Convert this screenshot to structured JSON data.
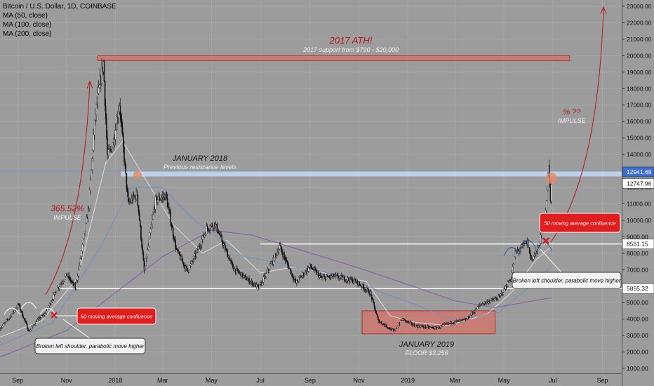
{
  "header": {
    "symbol": "Bitcoin / U.S. Dollar, 1D, COINBASE",
    "ma_labels": [
      "MA (50, close)",
      "MA (100, close)",
      "MA (200, close)"
    ]
  },
  "colors": {
    "background": "#9c9c9c",
    "grid": "#a7a7a7",
    "candle_up": "#ffffff",
    "candle_down": "#111111",
    "ma50": "#e2e2e2",
    "ma100": "#6a8fc2",
    "ma200": "#7d57b0",
    "red": "#b01818",
    "box_fill": "#d4736a",
    "resistance_band": "#c8d8f2",
    "white_line": "#ffffff"
  },
  "axis": {
    "y_ticks": [
      "1000.00",
      "2000.00",
      "3000.00",
      "4000.00",
      "5000.00",
      "6000.00",
      "7000.00",
      "8000.00",
      "9000.00",
      "10000.00",
      "11000.00",
      "12000.00",
      "13000.00",
      "14000.00",
      "15000.00",
      "16000.00",
      "17000.00",
      "18000.00",
      "19000.00",
      "20000.00",
      "21000.00",
      "22000.00",
      "23000.00"
    ],
    "x_ticks": [
      "Sep",
      "Nov",
      "2018",
      "Mar",
      "May",
      "Jul",
      "Sep",
      "Nov",
      "2019",
      "Mar",
      "May",
      "Jul",
      "Sep"
    ],
    "price_tags": [
      "12941.69",
      "12747.96",
      "8561.15",
      "5855.32"
    ]
  },
  "annotations": {
    "ath_title": "2017 ATH!",
    "ath_sub": "2017 support from $790 - $20,000",
    "jan2018_title": "JANUARY 2018",
    "jan2018_sub": "Previous resistance levels",
    "impulse_pct": "365.52%",
    "impulse_label": "IMPULSE",
    "pct_unknown": "% ??",
    "impulse_label_2": "IMPULSE",
    "jan2019_title": "JANUARY 2019",
    "jan2019_sub": "FLOOR $3,256",
    "ma_confluence_1": "50 moving average confluence",
    "ma_confluence_2": "50 moving average confluence",
    "broken_shoulder_1": "Broken left shoulder, parabolic move higher",
    "broken_shoulder_2": "Broken left shoulder, parabolic move higher"
  },
  "chart_data": {
    "type": "candlestick",
    "title": "Bitcoin / U.S. Dollar, 1D, COINBASE",
    "y_scale": "linear",
    "ylim": [
      1000,
      23000
    ],
    "x_range": [
      "2017-08-10",
      "2019-09-25"
    ],
    "series": [
      {
        "name": "price",
        "points": [
          [
            "2017-08-10",
            3400
          ],
          [
            "2017-08-25",
            4300
          ],
          [
            "2017-09-02",
            4900
          ],
          [
            "2017-09-15",
            3250
          ],
          [
            "2017-09-25",
            3900
          ],
          [
            "2017-10-05",
            4300
          ],
          [
            "2017-10-20",
            5800
          ],
          [
            "2017-11-01",
            6700
          ],
          [
            "2017-11-12",
            5900
          ],
          [
            "2017-11-20",
            8100
          ],
          [
            "2017-11-29",
            10900
          ],
          [
            "2017-12-07",
            16500
          ],
          [
            "2017-12-17",
            19600
          ],
          [
            "2017-12-22",
            13900
          ],
          [
            "2017-12-29",
            14600
          ],
          [
            "2018-01-06",
            17100
          ],
          [
            "2018-01-17",
            11000
          ],
          [
            "2018-01-28",
            11600
          ],
          [
            "2018-02-06",
            6900
          ],
          [
            "2018-02-20",
            11200
          ],
          [
            "2018-03-05",
            11500
          ],
          [
            "2018-03-18",
            8200
          ],
          [
            "2018-04-01",
            6900
          ],
          [
            "2018-04-12",
            8000
          ],
          [
            "2018-04-25",
            9500
          ],
          [
            "2018-05-05",
            9800
          ],
          [
            "2018-05-28",
            7100
          ],
          [
            "2018-06-12",
            6500
          ],
          [
            "2018-06-29",
            5900
          ],
          [
            "2018-07-08",
            6700
          ],
          [
            "2018-07-25",
            8400
          ],
          [
            "2018-08-14",
            6200
          ],
          [
            "2018-09-01",
            7200
          ],
          [
            "2018-09-15",
            6500
          ],
          [
            "2018-10-01",
            6600
          ],
          [
            "2018-10-28",
            6300
          ],
          [
            "2018-11-15",
            5600
          ],
          [
            "2018-11-25",
            3900
          ],
          [
            "2018-12-15",
            3250
          ],
          [
            "2018-12-25",
            4000
          ],
          [
            "2019-01-10",
            3600
          ],
          [
            "2019-02-05",
            3450
          ],
          [
            "2019-02-25",
            3800
          ],
          [
            "2019-03-15",
            3950
          ],
          [
            "2019-04-02",
            4900
          ],
          [
            "2019-04-25",
            5300
          ],
          [
            "2019-05-10",
            6500
          ],
          [
            "2019-05-15",
            8000
          ],
          [
            "2019-05-30",
            8700
          ],
          [
            "2019-06-04",
            7600
          ],
          [
            "2019-06-12",
            8200
          ],
          [
            "2019-06-18",
            9300
          ],
          [
            "2019-06-22",
            10700
          ],
          [
            "2019-06-26",
            13200
          ],
          [
            "2019-06-28",
            11400
          ],
          [
            "2019-06-29",
            12100
          ]
        ]
      },
      {
        "name": "MA (50, close)",
        "points": [
          [
            "2017-08-10",
            2900
          ],
          [
            "2017-10-01",
            3900
          ],
          [
            "2017-11-15",
            6500
          ],
          [
            "2017-12-20",
            13500
          ],
          [
            "2018-01-10",
            14800
          ],
          [
            "2018-02-10",
            12300
          ],
          [
            "2018-03-15",
            9700
          ],
          [
            "2018-04-20",
            8000
          ],
          [
            "2018-05-20",
            8800
          ],
          [
            "2018-07-01",
            6800
          ],
          [
            "2018-08-15",
            7200
          ],
          [
            "2018-10-15",
            6500
          ],
          [
            "2018-11-10",
            6300
          ],
          [
            "2018-12-10",
            4200
          ],
          [
            "2019-01-10",
            3800
          ],
          [
            "2019-02-20",
            3600
          ],
          [
            "2019-04-10",
            4300
          ],
          [
            "2019-05-10",
            5600
          ],
          [
            "2019-06-10",
            7600
          ],
          [
            "2019-06-29",
            8400
          ]
        ]
      },
      {
        "name": "MA (100, close)",
        "points": [
          [
            "2017-08-10",
            2400
          ],
          [
            "2017-10-15",
            3800
          ],
          [
            "2017-12-15",
            8500
          ],
          [
            "2018-01-20",
            12000
          ],
          [
            "2018-02-28",
            12000
          ],
          [
            "2018-04-10",
            10000
          ],
          [
            "2018-06-10",
            7800
          ],
          [
            "2018-08-15",
            7200
          ],
          [
            "2018-10-15",
            6600
          ],
          [
            "2018-12-01",
            5600
          ],
          [
            "2019-01-15",
            4800
          ],
          [
            "2019-03-01",
            3900
          ],
          [
            "2019-04-25",
            4400
          ],
          [
            "2019-06-10",
            6300
          ],
          [
            "2019-06-29",
            7200
          ]
        ]
      },
      {
        "name": "MA (200, close)",
        "points": [
          [
            "2017-08-10",
            1700
          ],
          [
            "2017-11-01",
            3300
          ],
          [
            "2018-01-01",
            5600
          ],
          [
            "2018-03-01",
            7800
          ],
          [
            "2018-05-01",
            9400
          ],
          [
            "2018-06-20",
            9100
          ],
          [
            "2018-08-20",
            8200
          ],
          [
            "2018-11-01",
            7100
          ],
          [
            "2019-01-01",
            6100
          ],
          [
            "2019-03-01",
            5100
          ],
          [
            "2019-04-20",
            4700
          ],
          [
            "2019-06-29",
            5300
          ]
        ]
      }
    ],
    "levels": [
      {
        "label": "12941.69",
        "value": 12941.69
      },
      {
        "label": "12747.96",
        "value": 12747.96
      },
      {
        "label": "8561.15",
        "value": 8561.15
      },
      {
        "label": "5855.32",
        "value": 5855.32
      }
    ],
    "zones": [
      {
        "from": "2017-12-10",
        "to": "2019-07-22",
        "low": 19700,
        "high": 20000
      },
      {
        "from": "2018-11-05",
        "to": "2019-04-20",
        "low": 3100,
        "high": 4500
      }
    ]
  }
}
